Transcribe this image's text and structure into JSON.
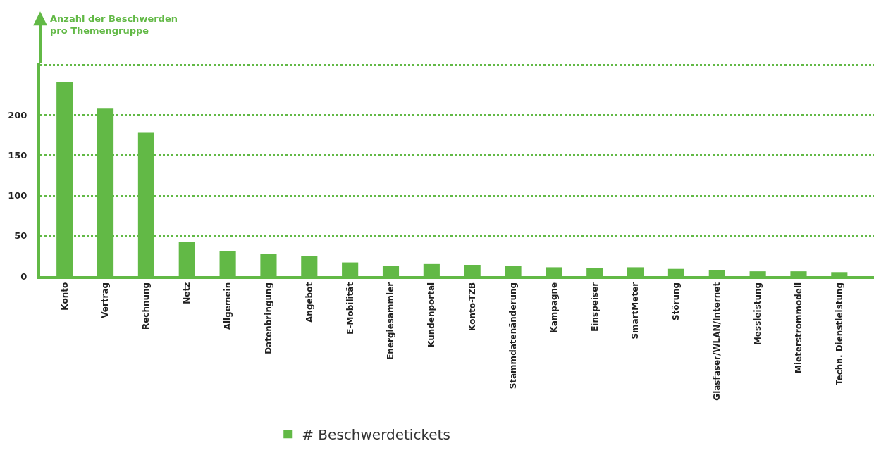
{
  "chart_data": {
    "type": "bar",
    "ylabel": "Anzahl der Beschwerden pro Themengruppe",
    "categories": [
      "Konto",
      "Vertrag",
      "Rechnung",
      "Netz",
      "Allgemein",
      "Datenbringung",
      "Angebot",
      "E-Mobilität",
      "Energiesammler",
      "Kundenportal",
      "Konto-TZB",
      "Stammdatenänderung",
      "Kampagne",
      "Einspeiser",
      "SmartMeter",
      "Störung",
      "Glasfaser/WLAN/Internet",
      "Messleistung",
      "Mieterstrommodell",
      "Techn. Dienstleistung"
    ],
    "series": [
      {
        "name": "# Beschwerdetickets",
        "color": "#62b946",
        "values": [
          241,
          208,
          178,
          42,
          31,
          28,
          25,
          17,
          13,
          15,
          14,
          13,
          11,
          10,
          11,
          9,
          7,
          6,
          6,
          5
        ]
      }
    ],
    "ylim": [
      0,
      265
    ],
    "yticks": [
      0,
      50,
      100,
      150,
      200,
      {
        "value": 262,
        "label": null
      }
    ],
    "grid": "y",
    "legend": "bottom"
  }
}
